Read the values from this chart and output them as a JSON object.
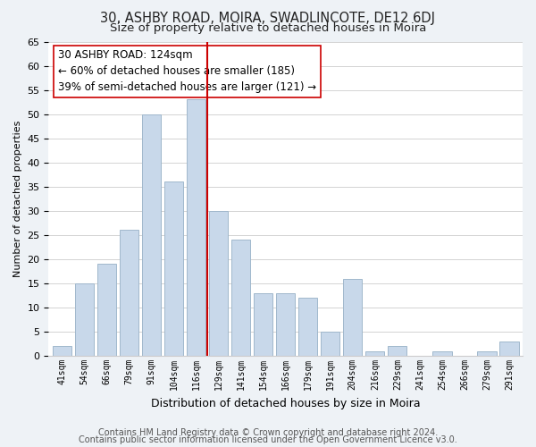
{
  "title": "30, ASHBY ROAD, MOIRA, SWADLINCOTE, DE12 6DJ",
  "subtitle": "Size of property relative to detached houses in Moira",
  "xlabel": "Distribution of detached houses by size in Moira",
  "ylabel": "Number of detached properties",
  "bar_labels": [
    "41sqm",
    "54sqm",
    "66sqm",
    "79sqm",
    "91sqm",
    "104sqm",
    "116sqm",
    "129sqm",
    "141sqm",
    "154sqm",
    "166sqm",
    "179sqm",
    "191sqm",
    "204sqm",
    "216sqm",
    "229sqm",
    "241sqm",
    "254sqm",
    "266sqm",
    "279sqm",
    "291sqm"
  ],
  "bar_values": [
    2,
    15,
    19,
    26,
    50,
    36,
    53,
    30,
    24,
    13,
    13,
    12,
    5,
    16,
    1,
    2,
    0,
    1,
    0,
    1,
    3
  ],
  "bar_color": "#c8d8ea",
  "bar_edge_color": "#a0b8cc",
  "vline_x_index": 7,
  "vline_color": "#cc0000",
  "annotation_line1": "30 ASHBY ROAD: 124sqm",
  "annotation_line2": "← 60% of detached houses are smaller (185)",
  "annotation_line3": "39% of semi-detached houses are larger (121) →",
  "ylim": [
    0,
    65
  ],
  "yticks": [
    0,
    5,
    10,
    15,
    20,
    25,
    30,
    35,
    40,
    45,
    50,
    55,
    60,
    65
  ],
  "footer_line1": "Contains HM Land Registry data © Crown copyright and database right 2024.",
  "footer_line2": "Contains public sector information licensed under the Open Government Licence v3.0.",
  "bg_color": "#eef2f6",
  "plot_bg_color": "#ffffff",
  "title_fontsize": 10.5,
  "subtitle_fontsize": 9.5,
  "annotation_fontsize": 8.5,
  "footer_fontsize": 7,
  "ylabel_fontsize": 8,
  "xlabel_fontsize": 9
}
